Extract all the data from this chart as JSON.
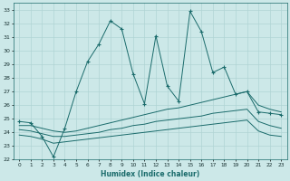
{
  "xlabel": "Humidex (Indice chaleur)",
  "bg_color": "#cce8e8",
  "grid_color": "#b0d4d4",
  "line_color": "#1a6b6b",
  "xlim": [
    -0.5,
    23.5
  ],
  "ylim": [
    22,
    33.5
  ],
  "xticks": [
    0,
    1,
    2,
    3,
    4,
    5,
    6,
    7,
    8,
    9,
    10,
    11,
    12,
    13,
    14,
    15,
    16,
    17,
    18,
    19,
    20,
    21,
    22,
    23
  ],
  "yticks": [
    22,
    23,
    24,
    25,
    26,
    27,
    28,
    29,
    30,
    31,
    32,
    33
  ],
  "series1_x": [
    0,
    1,
    2,
    3,
    4,
    5,
    6,
    7,
    8,
    9,
    10,
    11,
    12,
    13,
    14,
    15,
    16,
    17,
    18,
    19,
    20,
    21,
    22,
    23
  ],
  "series1_y": [
    24.8,
    24.7,
    23.7,
    22.2,
    24.3,
    27.0,
    29.2,
    30.5,
    32.2,
    31.6,
    28.3,
    26.1,
    31.1,
    27.4,
    26.3,
    32.9,
    31.4,
    28.4,
    28.8,
    26.8,
    27.0,
    25.5,
    25.4,
    25.3
  ],
  "series2_x": [
    0,
    1,
    2,
    3,
    4,
    5,
    6,
    7,
    8,
    9,
    10,
    11,
    12,
    13,
    14,
    15,
    16,
    17,
    18,
    19,
    20,
    21,
    22,
    23
  ],
  "series2_y": [
    24.5,
    24.5,
    24.3,
    24.1,
    24.0,
    24.1,
    24.3,
    24.5,
    24.7,
    24.9,
    25.1,
    25.3,
    25.5,
    25.7,
    25.8,
    26.0,
    26.2,
    26.4,
    26.6,
    26.8,
    27.0,
    26.0,
    25.7,
    25.5
  ],
  "series3_x": [
    0,
    1,
    2,
    3,
    4,
    5,
    6,
    7,
    8,
    9,
    10,
    11,
    12,
    13,
    14,
    15,
    16,
    17,
    18,
    19,
    20,
    21,
    22,
    23
  ],
  "series3_y": [
    24.2,
    24.1,
    23.9,
    23.7,
    23.7,
    23.8,
    23.9,
    24.0,
    24.2,
    24.3,
    24.5,
    24.6,
    24.8,
    24.9,
    25.0,
    25.1,
    25.2,
    25.4,
    25.5,
    25.6,
    25.7,
    24.8,
    24.5,
    24.3
  ],
  "series4_x": [
    0,
    1,
    2,
    3,
    4,
    5,
    6,
    7,
    8,
    9,
    10,
    11,
    12,
    13,
    14,
    15,
    16,
    17,
    18,
    19,
    20,
    21,
    22,
    23
  ],
  "series4_y": [
    23.8,
    23.7,
    23.5,
    23.2,
    23.3,
    23.4,
    23.5,
    23.6,
    23.7,
    23.8,
    23.9,
    24.0,
    24.1,
    24.2,
    24.3,
    24.4,
    24.5,
    24.6,
    24.7,
    24.8,
    24.9,
    24.1,
    23.8,
    23.7
  ]
}
